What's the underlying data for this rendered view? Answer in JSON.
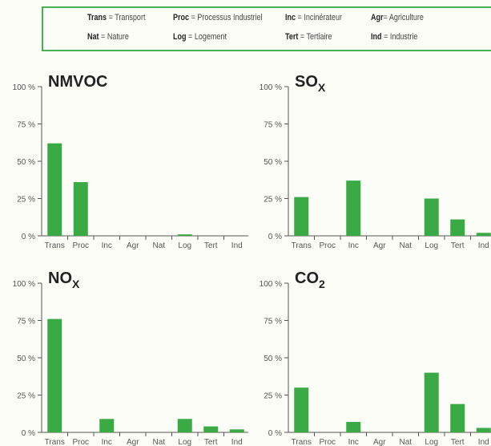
{
  "legend": {
    "items": [
      {
        "abbr": "Trans",
        "sep": " = ",
        "desc": "Transport"
      },
      {
        "abbr": "Proc",
        "sep": " = ",
        "desc": "Processus Industriel"
      },
      {
        "abbr": "Inc",
        "sep": " = ",
        "desc": "Incinérateur"
      },
      {
        "abbr": "Agr",
        "sep": "= ",
        "desc": "Agriculture"
      },
      {
        "abbr": "Nat",
        "sep": " = ",
        "desc": "Nature"
      },
      {
        "abbr": "Log",
        "sep": " = ",
        "desc": "Logement"
      },
      {
        "abbr": "Tert",
        "sep": " = ",
        "desc": "Tertiaire"
      },
      {
        "abbr": "Ind",
        "sep": " = ",
        "desc": "Industrie"
      }
    ]
  },
  "colors": {
    "bar": "#3aaa44",
    "axis": "#555555",
    "border": "#44b24f"
  },
  "chart_data": [
    {
      "type": "bar",
      "title": "NMVOC",
      "title_sub": "",
      "categories": [
        "Trans",
        "Proc",
        "Inc",
        "Agr",
        "Nat",
        "Log",
        "Tert",
        "Ind"
      ],
      "values": [
        62,
        36,
        0,
        0,
        0,
        1,
        0,
        0
      ],
      "yticks": [
        "0 %",
        "25 %",
        "50 %",
        "75 %",
        "100 %"
      ],
      "ylim": [
        0,
        100
      ]
    },
    {
      "type": "bar",
      "title": "SO",
      "title_sub": "X",
      "categories": [
        "Trans",
        "Proc",
        "Inc",
        "Agr",
        "Nat",
        "Log",
        "Tert",
        "Ind"
      ],
      "values": [
        26,
        0,
        37,
        0,
        0,
        25,
        11,
        2
      ],
      "yticks": [
        "0 %",
        "25 %",
        "50 %",
        "75 %",
        "100 %"
      ],
      "ylim": [
        0,
        100
      ]
    },
    {
      "type": "bar",
      "title": "NO",
      "title_sub": "X",
      "categories": [
        "Trans",
        "Proc",
        "Inc",
        "Agr",
        "Nat",
        "Log",
        "Tert",
        "Ind"
      ],
      "values": [
        76,
        0,
        9,
        0,
        0,
        9,
        4,
        2
      ],
      "yticks": [
        "0 %",
        "25 %",
        "50 %",
        "75 %",
        "100 %"
      ],
      "ylim": [
        0,
        100
      ]
    },
    {
      "type": "bar",
      "title": "CO",
      "title_sub": "2",
      "categories": [
        "Trans",
        "Proc",
        "Inc",
        "Agr",
        "Nat",
        "Log",
        "Tert",
        "Ind"
      ],
      "values": [
        30,
        0,
        7,
        0,
        0,
        40,
        19,
        3
      ],
      "yticks": [
        "0 %",
        "25 %",
        "50 %",
        "75 %",
        "100 %"
      ],
      "ylim": [
        0,
        100
      ]
    }
  ]
}
